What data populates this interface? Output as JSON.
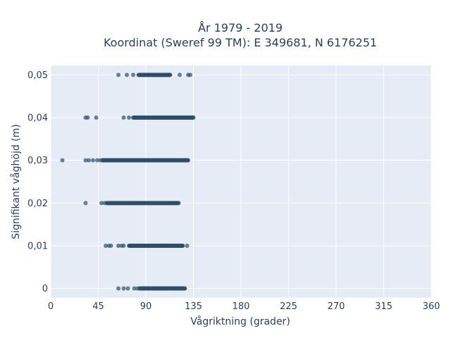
{
  "chart_data": {
    "type": "scatter",
    "title_line1": "År 1979 - 2019",
    "title_line2": "Koordinat (Sweref 99 TM): E 349681, N 6176251",
    "xlabel": "Vågriktning (grader)",
    "ylabel": "Signifikant våghöjd (m)",
    "xlim": [
      0,
      360
    ],
    "ylim": [
      -0.0022,
      0.0522
    ],
    "x_ticks": [
      0,
      45,
      90,
      135,
      180,
      225,
      270,
      315,
      360
    ],
    "x_tick_labels": [
      "0",
      "45",
      "90",
      "135",
      "180",
      "225",
      "270",
      "315",
      "360"
    ],
    "y_ticks": [
      0,
      0.01,
      0.02,
      0.03,
      0.04,
      0.05
    ],
    "y_tick_labels": [
      "0",
      "0,01",
      "0,02",
      "0,03",
      "0,04",
      "0,05"
    ],
    "grid": true,
    "colors": {
      "plot_bg": "#e5ecf6",
      "grid": "#ffffff",
      "marker": "#2f4f66",
      "text": "#2a3f5f"
    },
    "marker_opacity": 0.7,
    "rows": [
      {
        "y": 0.05,
        "sparse_x": [
          64,
          72,
          78,
          122,
          130,
          132
        ],
        "dense_ranges": [
          [
            83,
            113
          ]
        ]
      },
      {
        "y": 0.04,
        "sparse_x": [
          33,
          35,
          43,
          69,
          74
        ],
        "dense_ranges": [
          [
            78,
            135
          ]
        ]
      },
      {
        "y": 0.03,
        "sparse_x": [
          11,
          33,
          36,
          40,
          44,
          47
        ],
        "dense_ranges": [
          [
            49,
            130
          ]
        ]
      },
      {
        "y": 0.02,
        "sparse_x": [
          33,
          48,
          51
        ],
        "dense_ranges": [
          [
            53,
            121
          ]
        ]
      },
      {
        "y": 0.01,
        "sparse_x": [
          52,
          55,
          57,
          64,
          67,
          69,
          129
        ],
        "dense_ranges": [
          [
            74,
            125
          ]
        ]
      },
      {
        "y": 0,
        "sparse_x": [
          64,
          69,
          73,
          79,
          82
        ],
        "dense_ranges": [
          [
            84,
            127
          ]
        ]
      }
    ]
  }
}
